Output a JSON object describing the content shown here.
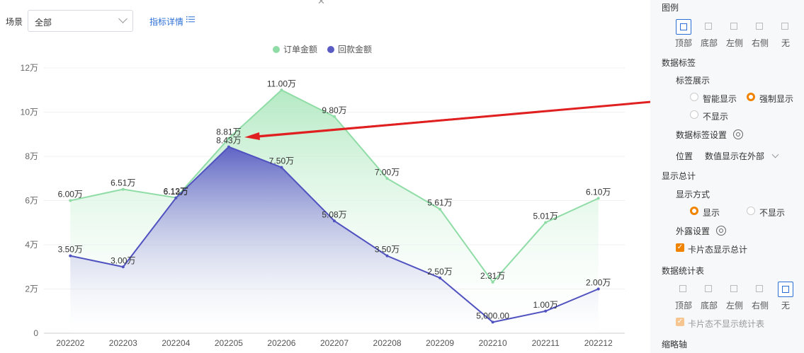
{
  "filter": {
    "label": "场景",
    "value": "全部",
    "detail_link": "指标详情"
  },
  "chart_data": {
    "type": "area",
    "categories": [
      "202202",
      "202203",
      "202204",
      "202205",
      "202206",
      "202207",
      "202208",
      "202209",
      "202210",
      "202211",
      "202212"
    ],
    "series": [
      {
        "name": "订单金额",
        "color": "#8fdca6",
        "values": [
          60000,
          65100,
          61300,
          88100,
          110000,
          98000,
          70000,
          56100,
          23100,
          50100,
          61000
        ],
        "labels": [
          "6.00万",
          "6.51万",
          "6.13万",
          "8.81万",
          "11.00万",
          "9.80万",
          "7.00万",
          "5.61万",
          "2.31万",
          "5.01万",
          "6.10万"
        ]
      },
      {
        "name": "回款金额",
        "color": "#5a5cc4",
        "values": [
          35000,
          30000,
          61200,
          84300,
          75000,
          50800,
          35000,
          25000,
          5000,
          10000,
          20000
        ],
        "labels": [
          "3.50万",
          "3.00万",
          "6.12万",
          "8.43万",
          "7.50万",
          "5.08万",
          "3.50万",
          "2.50万",
          "5,000.00",
          "1.00万",
          "2.00万"
        ]
      }
    ],
    "yticks": [
      "0",
      "2万",
      "4万",
      "6万",
      "8万",
      "10万",
      "12万"
    ],
    "ylim": [
      0,
      120000
    ],
    "legend": "top-center",
    "grid": true
  },
  "panel": {
    "legend_title": "图例",
    "legend_positions": [
      "顶部",
      "底部",
      "左侧",
      "右侧",
      "无"
    ],
    "legend_selected": "顶部",
    "data_label_title": "数据标签",
    "label_display_title": "标签展示",
    "label_display_options": [
      "智能显示",
      "强制显示",
      "不显示"
    ],
    "label_display_selected": "强制显示",
    "label_setting": "数据标签设置",
    "position_label": "位置",
    "position_value": "数值显示在外部",
    "total_title": "显示总计",
    "display_mode_label": "显示方式",
    "display_options": [
      "显示",
      "不显示"
    ],
    "display_selected": "显示",
    "expose_setting": "外露设置",
    "card_total_checkbox": "卡片态显示总计",
    "stats_table_title": "数据统计表",
    "stats_positions": [
      "顶部",
      "底部",
      "左侧",
      "右侧",
      "无"
    ],
    "stats_selected": "无",
    "card_hide_stats": "卡片态不显示统计表",
    "thumbnail_title": "缩略轴"
  },
  "annotation_color": "#e02020"
}
